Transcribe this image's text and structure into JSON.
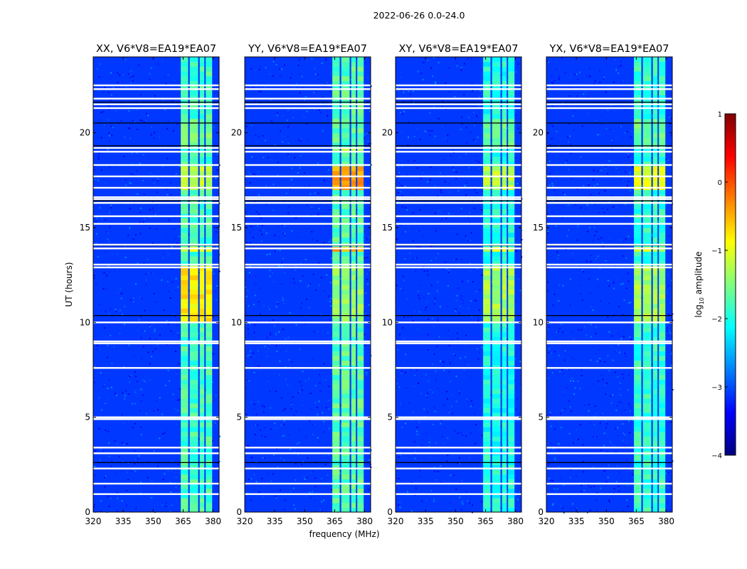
{
  "suptitle": "2022-06-26 0.0-24.0",
  "shared_xlabel": "frequency (MHz)",
  "shared_ylabel": "UT (hours)",
  "colors": {
    "jet_stops": [
      "#00007f",
      "#0000ff",
      "#007fff",
      "#00ffff",
      "#7fff7f",
      "#ffff00",
      "#ff7f00",
      "#ff0000",
      "#7f0000"
    ],
    "flag_white": "#ffffff",
    "flag_black": "#000000"
  },
  "colorbar": {
    "label": "log10 amplitude",
    "label_base": "log",
    "label_sub": "10",
    "label_rest": " amplitude",
    "vmin": -4,
    "vmax": 1,
    "ticks": [
      1,
      0,
      -1,
      -2,
      -3,
      -4
    ],
    "tick_labels": [
      "1",
      "0",
      "−1",
      "−2",
      "−3",
      "−4"
    ],
    "colormap": "jet"
  },
  "chart_data": [
    {
      "type": "heatmap",
      "title": "XX, V6*V8=EA19*EA07",
      "xlabel": "",
      "ylabel": "UT (hours)",
      "xlim": [
        320,
        383
      ],
      "ylim": [
        0,
        24
      ],
      "x_ticks": [
        320,
        335,
        350,
        365,
        380
      ],
      "x_tick_labels": [
        "320",
        "335",
        "350",
        "365",
        "380"
      ],
      "y_ticks": [
        0,
        5,
        10,
        15,
        20
      ],
      "y_tick_labels": [
        "0",
        "5",
        "10",
        "15",
        "20"
      ],
      "background_log_amplitude": -3.1,
      "bright_bands_MHz": [
        [
          363.8,
          367.5
        ],
        [
          368.3,
          372.5
        ],
        [
          373.3,
          375.6
        ],
        [
          376.3,
          379.5
        ]
      ],
      "band_level": -1.8,
      "hotspots": [
        {
          "t0": 9.9,
          "t1": 12.9,
          "level": -0.8
        },
        {
          "t0": 13.55,
          "t1": 13.9,
          "level": -1.0
        },
        {
          "t0": 16.9,
          "t1": 18.1,
          "level": -1.2
        },
        {
          "t0": 19.2,
          "t1": 20.6,
          "level": -1.5
        }
      ],
      "flagged_white_hours": [
        0.95,
        1.5,
        2.3,
        3.1,
        3.4,
        4.9,
        5.0,
        7.6,
        8.9,
        9.0,
        10.0,
        12.9,
        13.05,
        13.9,
        14.1,
        15.2,
        15.6,
        16.3,
        16.5,
        16.6,
        17.1,
        17.7,
        18.3,
        19.0,
        19.2,
        21.3,
        21.5,
        21.8,
        22.3,
        22.5
      ],
      "flagged_black_hours": [
        2.6,
        10.35,
        14.05,
        16.4,
        19.3,
        20.5,
        21.6
      ]
    },
    {
      "type": "heatmap",
      "title": "YY, V6*V8=EA19*EA07",
      "xlabel": "",
      "ylabel": "",
      "xlim": [
        320,
        383
      ],
      "ylim": [
        0,
        24
      ],
      "x_ticks": [
        320,
        335,
        350,
        365,
        380
      ],
      "x_tick_labels": [
        "320",
        "335",
        "350",
        "365",
        "380"
      ],
      "y_ticks": [
        0,
        5,
        10,
        15,
        20
      ],
      "y_tick_labels": [
        "0",
        "5",
        "10",
        "15",
        "20"
      ],
      "background_log_amplitude": -3.1,
      "bright_bands_MHz": [
        [
          363.8,
          367.5
        ],
        [
          368.3,
          372.5
        ],
        [
          373.3,
          375.6
        ],
        [
          376.3,
          379.5
        ]
      ],
      "band_level": -1.7,
      "hotspots": [
        {
          "t0": 10.0,
          "t1": 12.8,
          "level": -1.4
        },
        {
          "t0": 13.55,
          "t1": 13.9,
          "level": -0.5
        },
        {
          "t0": 16.9,
          "t1": 18.1,
          "level": -0.4
        },
        {
          "t0": 19.0,
          "t1": 19.2,
          "level": -1.3
        }
      ],
      "flagged_white_hours": [
        0.95,
        1.5,
        2.3,
        3.1,
        3.4,
        4.9,
        5.0,
        7.6,
        8.9,
        9.0,
        10.0,
        12.9,
        13.05,
        13.9,
        14.1,
        15.2,
        15.6,
        16.3,
        16.5,
        16.6,
        17.1,
        17.7,
        18.3,
        19.0,
        19.2,
        21.3,
        21.5,
        21.8,
        22.3,
        22.5
      ],
      "flagged_black_hours": [
        2.6,
        10.35,
        14.05,
        16.4,
        19.3,
        20.5,
        21.6
      ]
    },
    {
      "type": "heatmap",
      "title": "XY, V6*V8=EA19*EA07",
      "xlabel": "",
      "ylabel": "",
      "xlim": [
        320,
        383
      ],
      "ylim": [
        0,
        24
      ],
      "x_ticks": [
        320,
        335,
        350,
        365,
        380
      ],
      "x_tick_labels": [
        "320",
        "335",
        "350",
        "365",
        "380"
      ],
      "y_ticks": [
        0,
        5,
        10,
        15,
        20
      ],
      "y_tick_labels": [
        "0",
        "5",
        "10",
        "15",
        "20"
      ],
      "background_log_amplitude": -3.1,
      "bright_bands_MHz": [
        [
          363.8,
          367.5
        ],
        [
          368.3,
          372.5
        ],
        [
          373.3,
          375.6
        ],
        [
          376.3,
          379.5
        ]
      ],
      "band_level": -2.0,
      "hotspots": [
        {
          "t0": 10.0,
          "t1": 12.8,
          "level": -1.3
        },
        {
          "t0": 13.55,
          "t1": 13.9,
          "level": -1.1
        },
        {
          "t0": 16.9,
          "t1": 18.1,
          "level": -1.2
        },
        {
          "t0": 19.2,
          "t1": 20.6,
          "level": -1.6
        }
      ],
      "flagged_white_hours": [
        0.95,
        1.5,
        2.3,
        3.1,
        3.4,
        4.9,
        5.0,
        7.6,
        8.9,
        9.0,
        10.0,
        12.9,
        13.05,
        13.9,
        14.1,
        15.2,
        15.6,
        16.3,
        16.5,
        16.6,
        17.1,
        17.7,
        18.3,
        19.0,
        19.2,
        21.3,
        21.5,
        21.8,
        22.3,
        22.5
      ],
      "flagged_black_hours": [
        2.6,
        10.35,
        14.05,
        16.4,
        19.3,
        20.5,
        21.6
      ]
    },
    {
      "type": "heatmap",
      "title": "YX, V6*V8=EA19*EA07",
      "xlabel": "",
      "ylabel": "",
      "xlim": [
        320,
        383
      ],
      "ylim": [
        0,
        24
      ],
      "x_ticks": [
        320,
        335,
        350,
        365,
        380
      ],
      "x_tick_labels": [
        "320",
        "335",
        "350",
        "365",
        "380"
      ],
      "y_ticks": [
        0,
        5,
        10,
        15,
        20
      ],
      "y_tick_labels": [
        "0",
        "5",
        "10",
        "15",
        "20"
      ],
      "background_log_amplitude": -3.1,
      "bright_bands_MHz": [
        [
          363.8,
          367.5
        ],
        [
          368.3,
          372.5
        ],
        [
          373.3,
          375.6
        ],
        [
          376.3,
          379.5
        ]
      ],
      "band_level": -1.9,
      "hotspots": [
        {
          "t0": 10.0,
          "t1": 12.8,
          "level": -1.3
        },
        {
          "t0": 13.55,
          "t1": 13.9,
          "level": -1.1
        },
        {
          "t0": 16.9,
          "t1": 18.1,
          "level": -1.0
        },
        {
          "t0": 19.2,
          "t1": 20.6,
          "level": -1.6
        }
      ],
      "flagged_white_hours": [
        0.95,
        1.5,
        2.3,
        3.1,
        3.4,
        4.9,
        5.0,
        7.6,
        8.9,
        9.0,
        10.0,
        12.9,
        13.05,
        13.9,
        14.1,
        15.2,
        15.6,
        16.3,
        16.5,
        16.6,
        17.1,
        17.7,
        18.3,
        19.0,
        19.2,
        21.3,
        21.5,
        21.8,
        22.3,
        22.5
      ],
      "flagged_black_hours": [
        2.6,
        10.35,
        14.05,
        16.4,
        19.3,
        20.5,
        21.6
      ]
    }
  ]
}
